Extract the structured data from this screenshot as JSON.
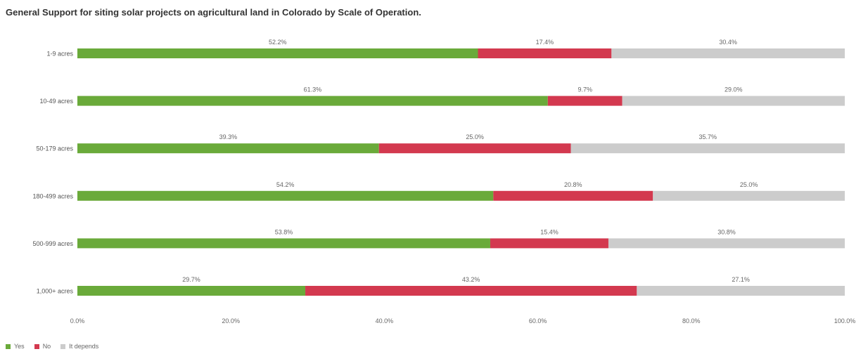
{
  "chart_data": {
    "type": "bar",
    "orientation": "horizontal",
    "stacked": true,
    "title": "General Support for siting solar projects on agricultural land in Colorado by Scale of Operation.",
    "categories": [
      "1-9 acres",
      "10-49 acres",
      "50-179 acres",
      "180-499 acres",
      "500-999 acres",
      "1,000+ acres"
    ],
    "series": [
      {
        "name": "Yes",
        "color": "#6aaa3a",
        "values": [
          52.2,
          61.3,
          39.3,
          54.2,
          53.8,
          29.7
        ]
      },
      {
        "name": "No",
        "color": "#d3394f",
        "values": [
          17.4,
          9.7,
          25.0,
          20.8,
          15.4,
          43.2
        ]
      },
      {
        "name": "It depends",
        "color": "#cccccc",
        "values": [
          30.4,
          29.0,
          35.7,
          25.0,
          30.8,
          27.1
        ]
      }
    ],
    "data_labels": [
      [
        "52.2%",
        "17.4%",
        "30.4%"
      ],
      [
        "61.3%",
        "9.7%",
        "29.0%"
      ],
      [
        "39.3%",
        "25.0%",
        "35.7%"
      ],
      [
        "54.2%",
        "20.8%",
        "25.0%"
      ],
      [
        "53.8%",
        "15.4%",
        "30.8%"
      ],
      [
        "29.7%",
        "43.2%",
        "27.1%"
      ]
    ],
    "xlim": [
      0,
      100
    ],
    "x_ticks": [
      "0.0%",
      "20.0%",
      "40.0%",
      "60.0%",
      "80.0%",
      "100.0%"
    ],
    "grid": false,
    "legend_position": "bottom-left"
  }
}
